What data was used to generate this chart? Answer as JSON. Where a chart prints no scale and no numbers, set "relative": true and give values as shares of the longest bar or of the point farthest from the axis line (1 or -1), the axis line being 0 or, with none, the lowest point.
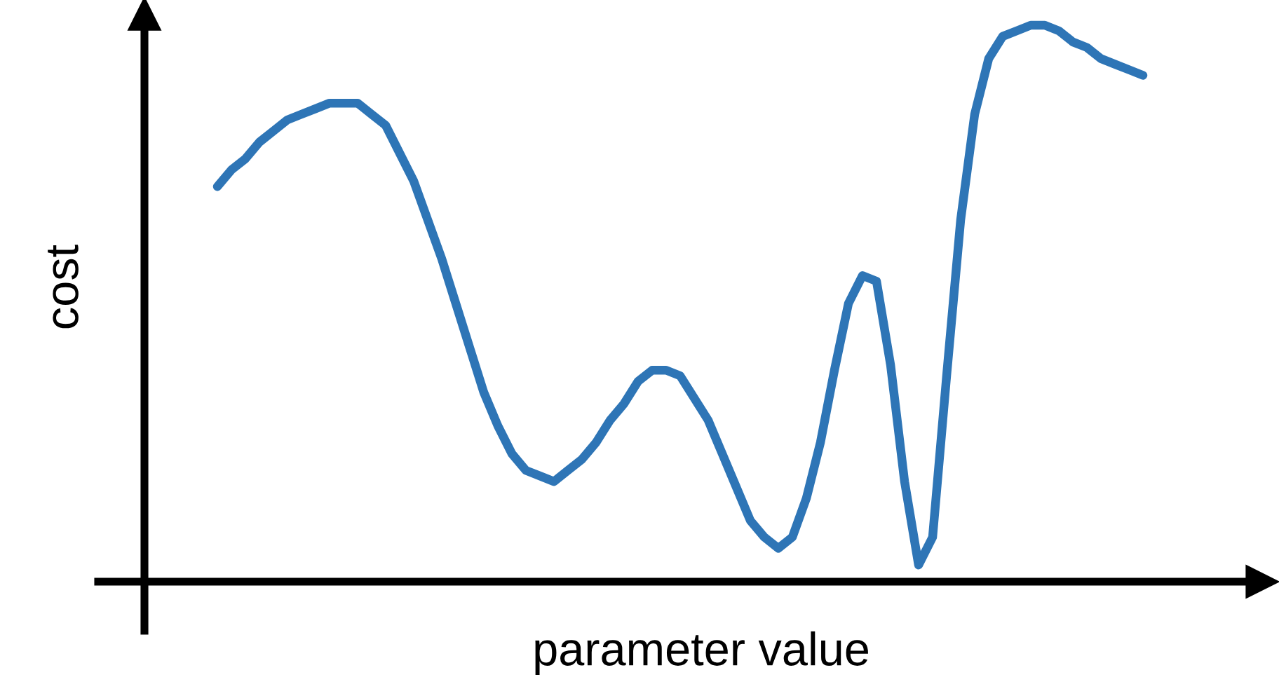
{
  "chart_data": {
    "type": "line",
    "relative": true,
    "xlabel": "parameter value",
    "ylabel": "cost",
    "color": "#2e75b6",
    "categories": [
      null,
      null,
      null,
      null,
      null,
      null,
      null,
      null,
      null,
      null,
      null,
      null,
      null,
      null,
      null,
      null,
      null,
      null,
      null,
      null,
      null,
      null,
      null,
      null,
      null,
      null,
      null,
      null,
      null,
      null,
      null,
      null,
      null,
      null,
      null,
      null,
      null,
      null,
      null,
      null,
      null,
      null,
      null,
      null,
      null,
      null,
      null,
      null,
      null,
      null,
      null,
      null,
      null,
      null,
      null,
      null,
      null,
      null,
      null,
      null,
      null,
      null,
      null,
      null,
      null,
      null,
      null
    ],
    "values": [
      0.71,
      0.74,
      0.76,
      0.79,
      0.81,
      0.83,
      0.84,
      0.85,
      0.86,
      0.86,
      0.86,
      0.84,
      0.82,
      0.77,
      0.72,
      0.65,
      0.58,
      0.5,
      0.42,
      0.34,
      0.28,
      0.23,
      0.2,
      0.19,
      0.18,
      0.2,
      0.22,
      0.25,
      0.29,
      0.32,
      0.36,
      0.38,
      0.38,
      0.37,
      0.33,
      0.29,
      0.23,
      0.17,
      0.11,
      0.08,
      0.06,
      0.08,
      0.15,
      0.25,
      0.38,
      0.5,
      0.55,
      0.54,
      0.39,
      0.18,
      0.03,
      0.08,
      0.37,
      0.65,
      0.84,
      0.94,
      0.98,
      0.99,
      1.0,
      1.0,
      0.99,
      0.97,
      0.96,
      0.94,
      0.93,
      0.92,
      0.91
    ]
  }
}
